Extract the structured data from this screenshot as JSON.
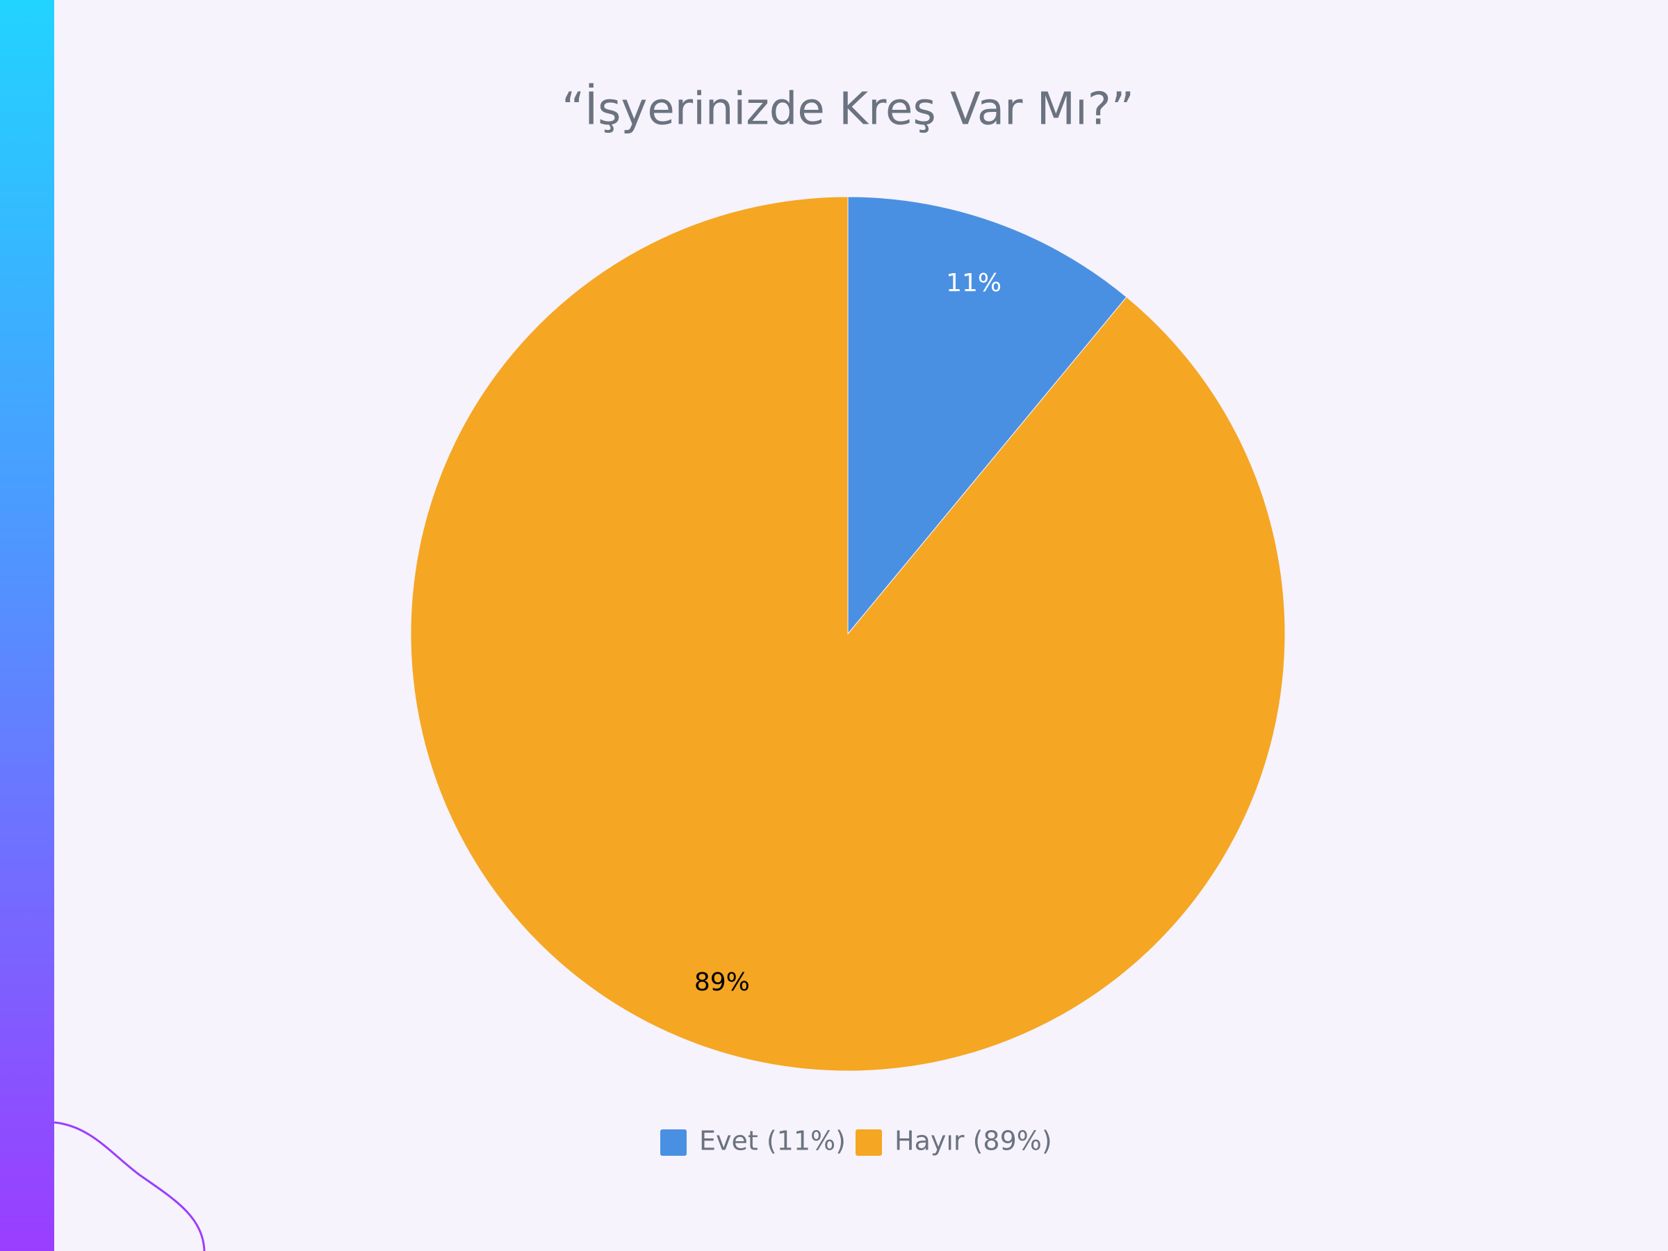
{
  "chart_data": {
    "type": "pie",
    "title": "“İşyerinizde Kreş Var Mı?”",
    "categories": [
      "Evet (11%)",
      "Hayır (89%)"
    ],
    "values": [
      11,
      89
    ],
    "value_labels": [
      "11%",
      "89%"
    ],
    "colors": [
      "#4a90e2",
      "#f5a623"
    ],
    "label_colors": [
      "#ffffff",
      "#000000"
    ],
    "legend": "bottom"
  }
}
